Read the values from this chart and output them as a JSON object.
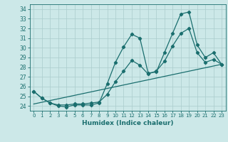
{
  "xlabel": "Humidex (Indice chaleur)",
  "bg_color": "#cce8e8",
  "line_color": "#1a6e6e",
  "grid_color": "#aacccc",
  "xlim": [
    -0.5,
    23.5
  ],
  "ylim": [
    23.5,
    34.5
  ],
  "yticks": [
    24,
    25,
    26,
    27,
    28,
    29,
    30,
    31,
    32,
    33,
    34
  ],
  "xticks": [
    0,
    1,
    2,
    3,
    4,
    5,
    6,
    7,
    8,
    9,
    10,
    11,
    12,
    13,
    14,
    15,
    16,
    17,
    18,
    19,
    20,
    21,
    22,
    23
  ],
  "series": [
    {
      "x": [
        0,
        1,
        2,
        3,
        4,
        5,
        6,
        7,
        8,
        9,
        10,
        11,
        12,
        13,
        14,
        15,
        16,
        17,
        18,
        19,
        20,
        21,
        22,
        23
      ],
      "y": [
        25.5,
        24.8,
        24.3,
        24.0,
        23.9,
        24.1,
        24.1,
        24.1,
        24.3,
        26.3,
        28.5,
        30.1,
        31.4,
        31.0,
        27.4,
        27.5,
        29.5,
        31.5,
        33.5,
        33.7,
        30.3,
        29.0,
        29.5,
        28.3
      ],
      "marker": "D",
      "markersize": 2.2,
      "linewidth": 0.9
    },
    {
      "x": [
        0,
        23
      ],
      "y": [
        24.2,
        28.3
      ],
      "marker": null,
      "markersize": 0,
      "linewidth": 0.9
    },
    {
      "x": [
        0,
        1,
        2,
        3,
        4,
        5,
        6,
        7,
        8,
        9,
        10,
        11,
        12,
        13,
        14,
        15,
        16,
        17,
        18,
        19,
        20,
        21,
        22,
        23
      ],
      "y": [
        25.5,
        24.8,
        24.3,
        24.1,
        24.1,
        24.2,
        24.2,
        24.3,
        24.4,
        25.2,
        26.5,
        27.6,
        28.7,
        28.2,
        27.3,
        27.6,
        28.6,
        30.2,
        31.5,
        32.0,
        29.5,
        28.5,
        28.8,
        28.3
      ],
      "marker": "D",
      "markersize": 2.2,
      "linewidth": 0.9
    }
  ]
}
